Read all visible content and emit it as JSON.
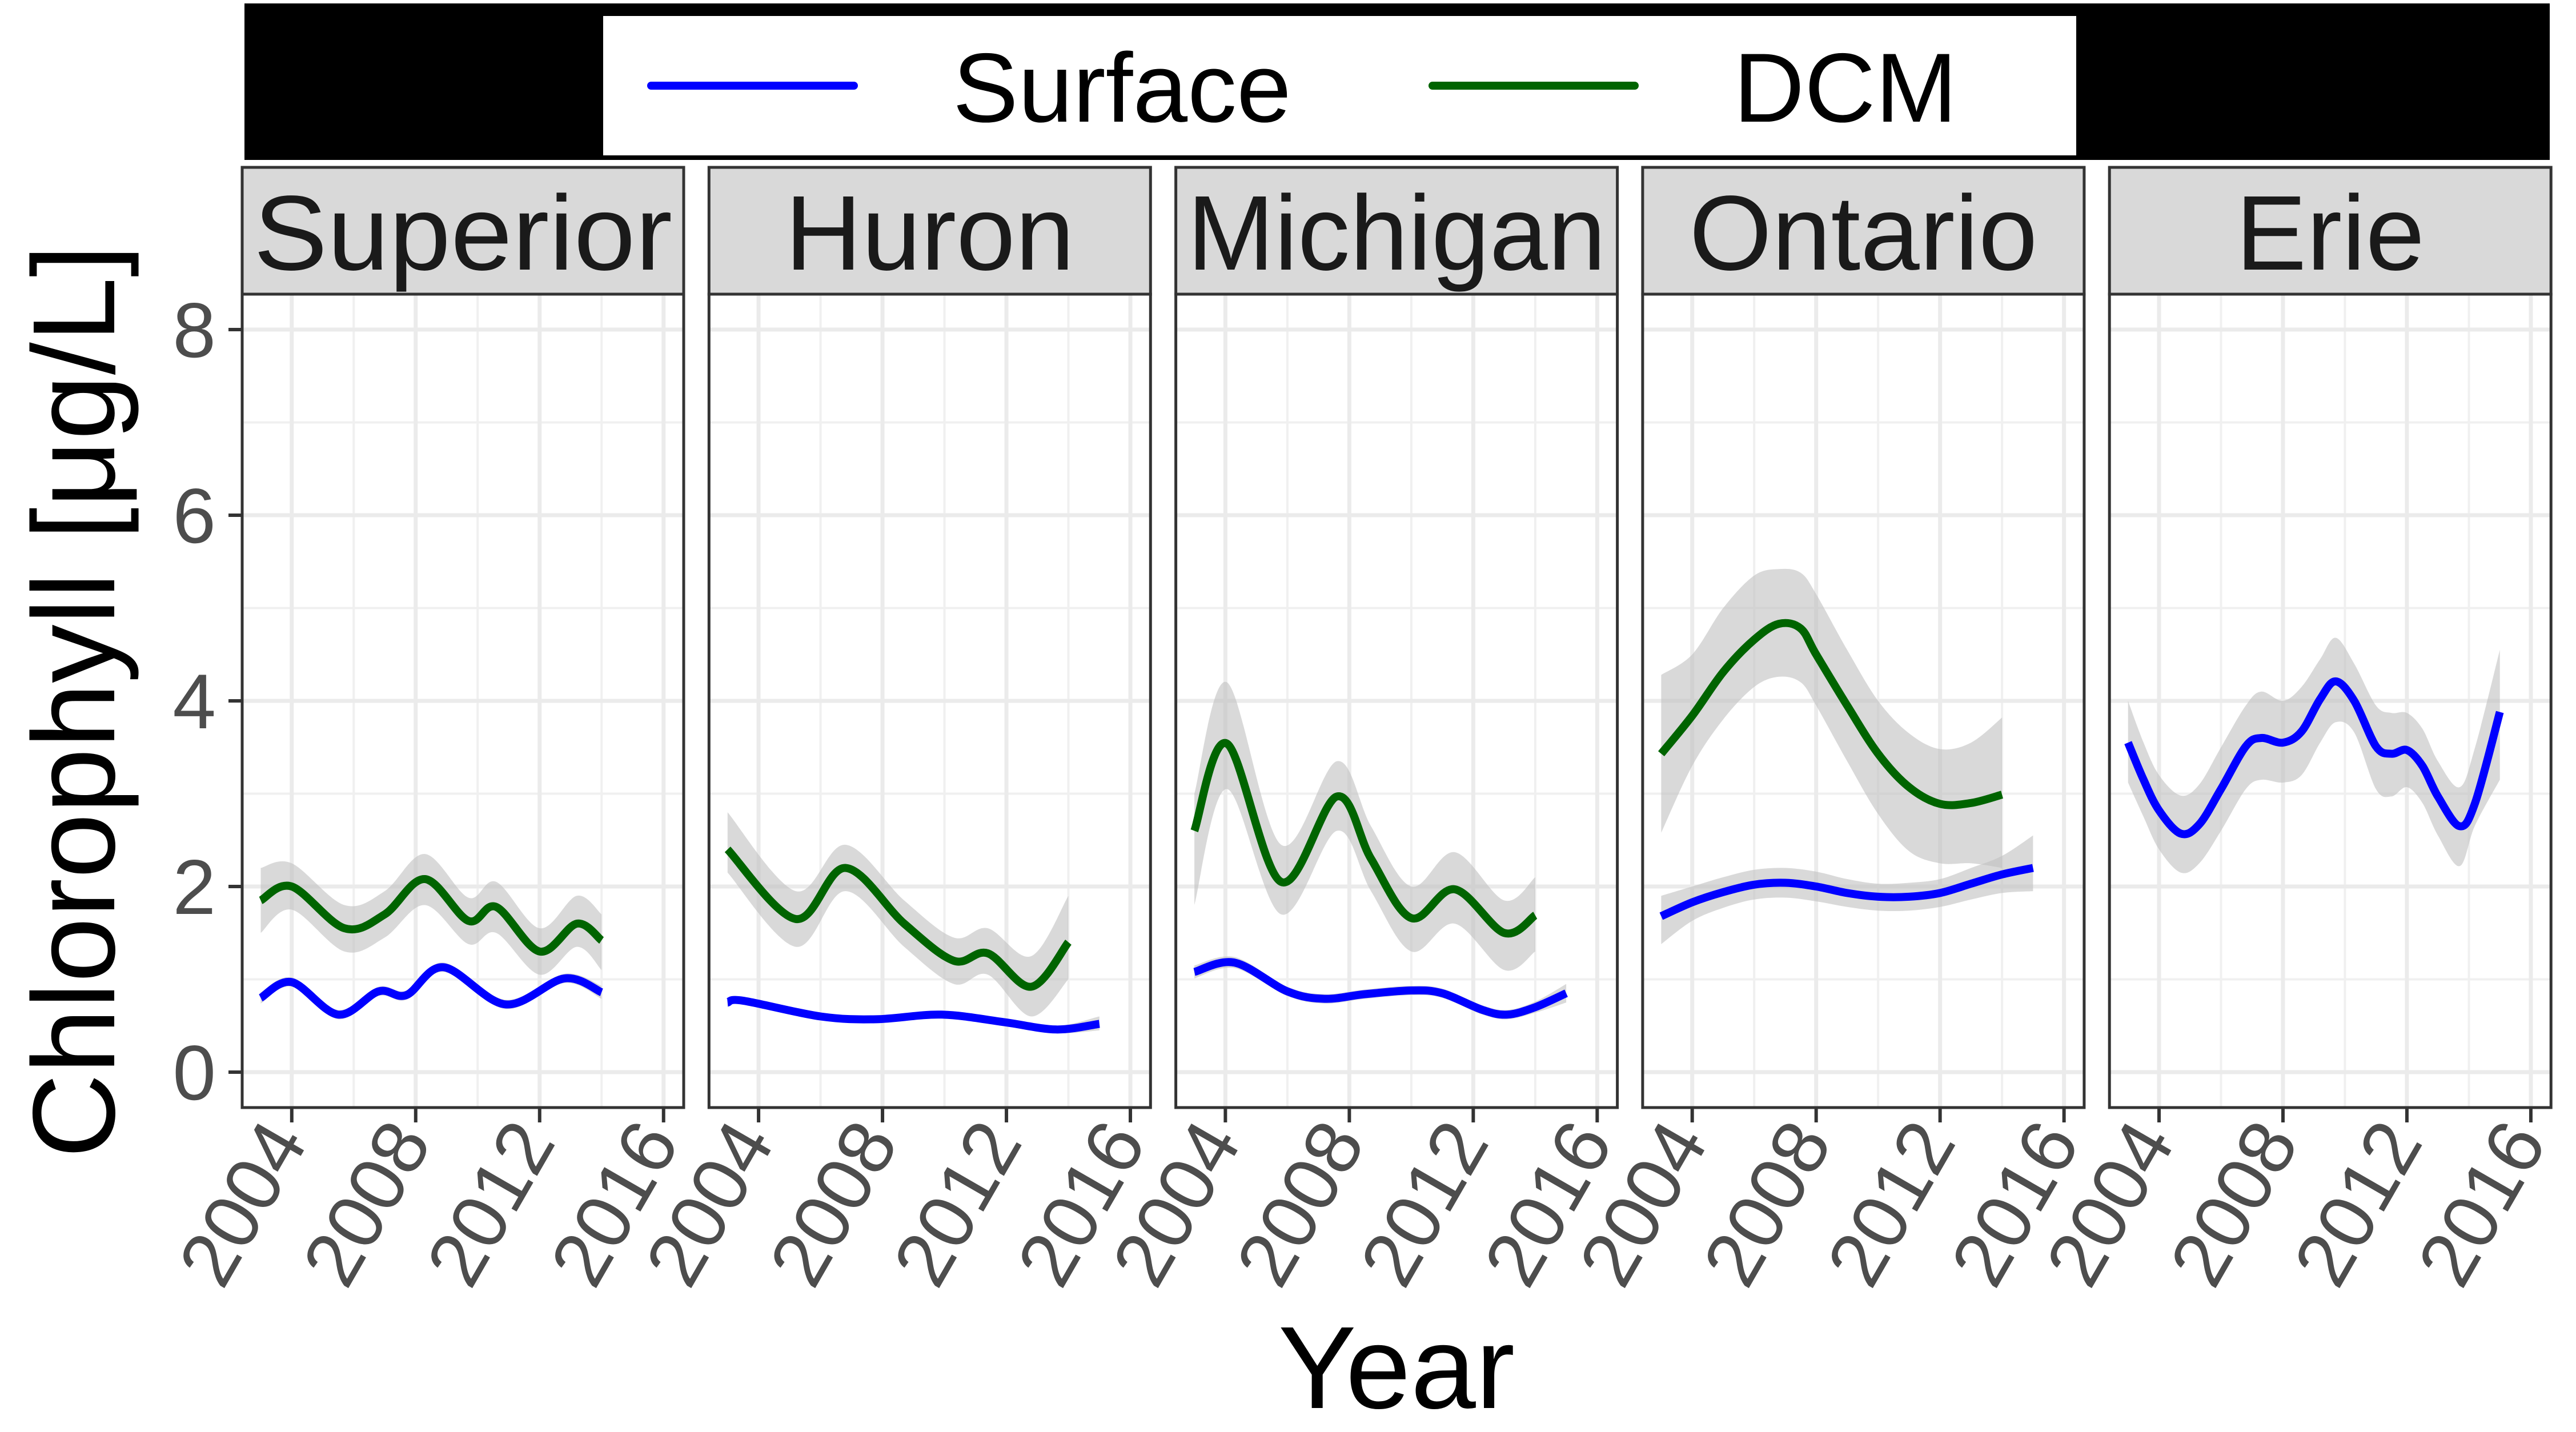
{
  "chart_data": {
    "type": "line",
    "title": "",
    "xlabel": "Year",
    "ylabel": "Chlorophyll [μg/L]",
    "xlim": [
      2002.4,
      2016.65
    ],
    "ylim": [
      -0.4,
      8.75
    ],
    "x_ticks": [
      2004,
      2008,
      2012,
      2016
    ],
    "x_tick_labels": [
      "2004",
      "2008",
      "2012",
      "2016"
    ],
    "x_minor_grid": [
      2002,
      2006,
      2010,
      2014
    ],
    "y_ticks": [
      0,
      2,
      4,
      6,
      8
    ],
    "y_tick_labels": [
      "0",
      "2",
      "4",
      "6",
      "8"
    ],
    "y_minor_grid": [
      1,
      3,
      5,
      7
    ],
    "grid": true,
    "legend": {
      "placement": "top",
      "entries": [
        {
          "label": "Surface",
          "color": "#0000ff"
        },
        {
          "label": "DCM",
          "color": "#006400"
        }
      ]
    },
    "colors": {
      "Surface": "#0000ff",
      "DCM": "#006400",
      "ribbon": "#bfbfbf",
      "strip": "#d9d9d9",
      "legend_bar": "#000000"
    },
    "panels": [
      {
        "name": "Superior",
        "series": [
          {
            "name": "DCM",
            "x": [
              2003.0,
              2004.0,
              2005.7,
              2007.0,
              2008.3,
              2009.7,
              2010.6,
              2012.0,
              2013.2,
              2014.0
            ],
            "y": [
              1.85,
              2.0,
              1.55,
              1.7,
              2.08,
              1.63,
              1.78,
              1.3,
              1.6,
              1.42
            ],
            "upper": [
              2.2,
              2.25,
              1.8,
              1.95,
              2.35,
              1.88,
              2.05,
              1.55,
              1.9,
              1.7
            ],
            "lower": [
              1.5,
              1.75,
              1.3,
              1.45,
              1.8,
              1.38,
              1.5,
              1.05,
              1.35,
              1.1
            ]
          },
          {
            "name": "Surface",
            "x": [
              2003.0,
              2004.0,
              2005.5,
              2006.8,
              2007.7,
              2008.9,
              2010.9,
              2012.8,
              2014.0
            ],
            "y": [
              0.8,
              0.97,
              0.62,
              0.87,
              0.83,
              1.13,
              0.73,
              1.01,
              0.86
            ],
            "upper": [
              0.86,
              1.02,
              0.67,
              0.92,
              0.88,
              1.18,
              0.78,
              1.06,
              0.93
            ],
            "lower": [
              0.74,
              0.92,
              0.57,
              0.82,
              0.78,
              1.08,
              0.68,
              0.96,
              0.79
            ]
          }
        ]
      },
      {
        "name": "Huron",
        "series": [
          {
            "name": "DCM",
            "x": [
              2003.0,
              2005.2,
              2006.8,
              2008.7,
              2010.3,
              2011.4,
              2012.8,
              2014.0
            ],
            "y": [
              2.4,
              1.65,
              2.2,
              1.6,
              1.2,
              1.28,
              0.92,
              1.4
            ],
            "upper": [
              2.8,
              1.95,
              2.45,
              1.85,
              1.45,
              1.55,
              1.25,
              1.9
            ],
            "lower": [
              2.15,
              1.35,
              1.95,
              1.35,
              0.95,
              1.05,
              0.6,
              1.0
            ]
          },
          {
            "name": "Surface",
            "x": [
              2003.0,
              2003.5,
              2006.0,
              2007.8,
              2009.9,
              2011.9,
              2013.6,
              2015.0
            ],
            "y": [
              0.75,
              0.77,
              0.6,
              0.57,
              0.62,
              0.54,
              0.46,
              0.52
            ],
            "upper": [
              0.8,
              0.81,
              0.64,
              0.61,
              0.66,
              0.58,
              0.5,
              0.6
            ],
            "lower": [
              0.7,
              0.73,
              0.56,
              0.53,
              0.58,
              0.5,
              0.42,
              0.45
            ]
          }
        ]
      },
      {
        "name": "Michigan",
        "series": [
          {
            "name": "DCM",
            "x": [
              2003.0,
              2004.05,
              2005.8,
              2007.6,
              2008.7,
              2010.0,
              2011.4,
              2013.0,
              2014.0
            ],
            "y": [
              2.6,
              3.54,
              2.05,
              2.97,
              2.3,
              1.66,
              1.97,
              1.5,
              1.69
            ],
            "upper": [
              3.0,
              4.2,
              2.45,
              3.35,
              2.65,
              2.0,
              2.37,
              1.85,
              2.1
            ],
            "lower": [
              1.8,
              3.05,
              1.7,
              2.6,
              1.95,
              1.3,
              1.6,
              1.1,
              1.3
            ]
          },
          {
            "name": "Surface",
            "x": [
              2003.0,
              2004.3,
              2006.0,
              2007.2,
              2008.5,
              2010.0,
              2011.0,
              2012.3,
              2013.1,
              2014.0,
              2015.0
            ],
            "y": [
              1.08,
              1.18,
              0.87,
              0.79,
              0.84,
              0.88,
              0.85,
              0.67,
              0.62,
              0.7,
              0.85
            ],
            "upper": [
              1.15,
              1.24,
              0.92,
              0.84,
              0.89,
              0.93,
              0.9,
              0.72,
              0.67,
              0.76,
              0.95
            ],
            "lower": [
              1.01,
              1.12,
              0.82,
              0.74,
              0.79,
              0.83,
              0.8,
              0.62,
              0.57,
              0.64,
              0.75
            ]
          }
        ]
      },
      {
        "name": "Ontario",
        "series": [
          {
            "name": "DCM",
            "x": [
              2003.0,
              2004.0,
              2005.0,
              2006.0,
              2006.8,
              2007.5,
              2008.0,
              2009.0,
              2010.0,
              2011.0,
              2012.0,
              2013.0,
              2014.0
            ],
            "y": [
              3.43,
              3.84,
              4.31,
              4.66,
              4.83,
              4.78,
              4.5,
              3.95,
              3.43,
              3.07,
              2.89,
              2.9,
              2.99
            ],
            "upper": [
              4.28,
              4.5,
              5.0,
              5.35,
              5.42,
              5.38,
              5.15,
              4.55,
              4.0,
              3.65,
              3.48,
              3.55,
              3.82
            ],
            "lower": [
              2.58,
              3.3,
              3.8,
              4.15,
              4.26,
              4.2,
              3.95,
              3.35,
              2.78,
              2.38,
              2.25,
              2.25,
              2.2
            ]
          },
          {
            "name": "Surface",
            "x": [
              2003.0,
              2004.0,
              2005.0,
              2006.0,
              2007.0,
              2008.0,
              2009.0,
              2010.0,
              2011.0,
              2012.0,
              2013.0,
              2014.0,
              2015.0
            ],
            "y": [
              1.68,
              1.83,
              1.94,
              2.02,
              2.04,
              2.0,
              1.93,
              1.89,
              1.89,
              1.93,
              2.03,
              2.13,
              2.2
            ],
            "upper": [
              1.9,
              2.0,
              2.1,
              2.18,
              2.2,
              2.16,
              2.08,
              2.03,
              2.04,
              2.08,
              2.2,
              2.33,
              2.55
            ],
            "lower": [
              1.38,
              1.63,
              1.77,
              1.86,
              1.88,
              1.84,
              1.78,
              1.74,
              1.74,
              1.78,
              1.86,
              1.93,
              1.95
            ]
          }
        ]
      },
      {
        "name": "Erie",
        "series": [
          {
            "name": "Surface",
            "x": [
              2003.0,
              2003.5,
              2004.0,
              2004.7,
              2005.3,
              2006.0,
              2006.8,
              2007.3,
              2008.0,
              2008.6,
              2009.2,
              2009.7,
              2010.3,
              2011.0,
              2011.5,
              2012.0,
              2012.5,
              2013.0,
              2013.7,
              2014.2,
              2015.0
            ],
            "y": [
              3.55,
              3.15,
              2.82,
              2.57,
              2.67,
              3.05,
              3.51,
              3.6,
              3.55,
              3.67,
              4.02,
              4.21,
              4.0,
              3.51,
              3.43,
              3.47,
              3.3,
              2.97,
              2.65,
              2.9,
              3.88
            ],
            "upper": [
              4.0,
              3.55,
              3.2,
              2.98,
              3.1,
              3.5,
              3.95,
              4.1,
              4.0,
              4.15,
              4.45,
              4.68,
              4.4,
              3.95,
              3.87,
              3.87,
              3.7,
              3.35,
              3.07,
              3.5,
              4.55
            ],
            "lower": [
              3.12,
              2.75,
              2.4,
              2.15,
              2.25,
              2.6,
              3.05,
              3.15,
              3.12,
              3.2,
              3.55,
              3.77,
              3.66,
              3.05,
              2.97,
              3.07,
              2.9,
              2.55,
              2.22,
              2.66,
              3.15
            ]
          }
        ]
      }
    ]
  }
}
